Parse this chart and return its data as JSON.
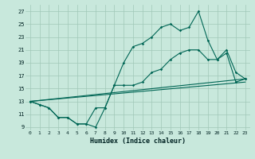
{
  "xlabel": "Humidex (Indice chaleur)",
  "xlim": [
    -0.5,
    23.5
  ],
  "ylim": [
    8.5,
    28.0
  ],
  "yticks": [
    9,
    11,
    13,
    15,
    17,
    19,
    21,
    23,
    25,
    27
  ],
  "xticks": [
    0,
    1,
    2,
    3,
    4,
    5,
    6,
    7,
    8,
    9,
    10,
    11,
    12,
    13,
    14,
    15,
    16,
    17,
    18,
    19,
    20,
    21,
    22,
    23
  ],
  "bg_color": "#c8e8dc",
  "grid_color": "#a0c8b8",
  "line_color": "#006655",
  "series1_x": [
    0,
    1,
    2,
    3,
    4,
    5,
    6,
    7,
    8,
    9,
    10,
    11,
    12,
    13,
    14,
    15,
    16,
    17,
    18,
    19,
    20,
    21,
    22,
    23
  ],
  "series1_y": [
    13.0,
    12.5,
    12.0,
    10.5,
    10.5,
    9.5,
    9.5,
    9.0,
    12.0,
    15.5,
    19.0,
    21.5,
    22.0,
    23.0,
    24.5,
    25.0,
    24.0,
    24.5,
    27.0,
    22.5,
    19.5,
    21.0,
    17.5,
    16.5
  ],
  "series2_x": [
    0,
    1,
    2,
    3,
    4,
    5,
    6,
    7,
    8,
    9,
    10,
    11,
    12,
    13,
    14,
    15,
    16,
    17,
    18,
    19,
    20,
    21,
    22,
    23
  ],
  "series2_y": [
    13.0,
    12.5,
    12.0,
    10.5,
    10.5,
    9.5,
    9.5,
    12.0,
    12.0,
    15.5,
    15.5,
    15.5,
    16.0,
    17.5,
    18.0,
    19.5,
    20.5,
    21.0,
    21.0,
    19.5,
    19.5,
    20.5,
    16.0,
    16.5
  ],
  "series3_x": [
    0,
    23
  ],
  "series3_y": [
    13.0,
    16.0
  ],
  "series4_x": [
    0,
    23
  ],
  "series4_y": [
    13.0,
    16.5
  ]
}
